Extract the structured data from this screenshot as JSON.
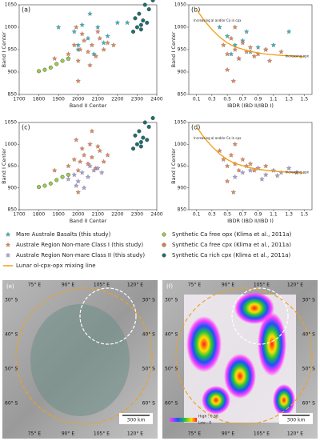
{
  "chart_data": [
    {
      "type": "scatter",
      "title": "(a)",
      "xlabel": "Band II Center",
      "ylabel": "Band I Center",
      "xlim": [
        1700,
        2400
      ],
      "xticks": [
        1700,
        1800,
        1900,
        2000,
        2100,
        2200,
        2300,
        2400
      ],
      "ylim": [
        850,
        1050
      ],
      "yticks": [
        850,
        900,
        950,
        1000,
        1050
      ],
      "series": [
        {
          "color": "#3ab5c0",
          "marker": "star",
          "x": [
            1900,
            1950,
            1980,
            2000,
            2020,
            2050,
            2080,
            2100,
            2130,
            2150,
            2200,
            2250,
            2000,
            2060
          ],
          "y": [
            1000,
            930,
            990,
            960,
            1005,
            975,
            940,
            1000,
            965,
            980,
            1010,
            1010,
            950,
            1030
          ]
        },
        {
          "color": "#e8875a",
          "marker": "star",
          "x": [
            1950,
            1980,
            2000,
            2010,
            2030,
            2050,
            2070,
            2090,
            2110,
            2130,
            2150,
            2180,
            2000,
            2060,
            1990,
            2100,
            1880,
            2020
          ],
          "y": [
            940,
            960,
            925,
            950,
            970,
            945,
            960,
            935,
            975,
            950,
            965,
            960,
            880,
            915,
            1000,
            990,
            930,
            985
          ]
        },
        {
          "color": "#9acd4a",
          "marker": "circle",
          "x": [
            1800,
            1830,
            1860,
            1890,
            1920,
            1950
          ],
          "y": [
            902,
            905,
            910,
            918,
            925,
            930
          ]
        },
        {
          "color": "#1f6f6f",
          "marker": "circle",
          "x": [
            2280,
            2300,
            2320,
            2330,
            2350,
            2290,
            2360,
            2310,
            2340,
            2380,
            2320
          ],
          "y": [
            990,
            1000,
            1005,
            1015,
            1010,
            1020,
            1040,
            1030,
            1050,
            1060,
            995
          ]
        }
      ]
    },
    {
      "type": "scatter",
      "title": "(b)",
      "xlabel": "IBDR (IBD II/IBD I)",
      "ylabel": "Band I Center",
      "xlim": [
        0,
        1.6
      ],
      "xticks": [
        0.1,
        0.3,
        0.5,
        0.7,
        0.9,
        1.1,
        1.3,
        1.5
      ],
      "ylim": [
        850,
        1050
      ],
      "yticks": [
        850,
        900,
        950,
        1000,
        1050
      ],
      "annotations": [
        "Increasing al and/or Ca in cpx",
        "Increasing opx"
      ],
      "series": [
        {
          "color": "#3ab5c0",
          "marker": "star",
          "x": [
            0.4,
            0.5,
            0.6,
            0.7,
            0.8,
            0.9,
            1.0,
            1.1,
            0.55,
            0.75,
            1.3,
            0.65
          ],
          "y": [
            1000,
            980,
            960,
            970,
            945,
            955,
            950,
            960,
            940,
            990,
            990,
            930
          ]
        },
        {
          "color": "#e8875a",
          "marker": "star",
          "x": [
            0.45,
            0.5,
            0.55,
            0.6,
            0.65,
            0.7,
            0.75,
            0.8,
            0.9,
            1.0,
            1.2,
            0.5,
            0.6,
            0.85,
            1.05,
            0.58
          ],
          "y": [
            960,
            940,
            975,
            950,
            930,
            965,
            945,
            955,
            940,
            950,
            945,
            905,
            1000,
            935,
            925,
            880
          ]
        },
        {
          "color": "#f39c12",
          "marker": "line",
          "x": [
            0.1,
            0.2,
            0.3,
            0.4,
            0.5,
            0.6,
            0.8,
            1.0,
            1.2,
            1.5
          ],
          "y": [
            1040,
            1015,
            995,
            978,
            965,
            956,
            946,
            940,
            937,
            934
          ]
        }
      ]
    },
    {
      "type": "scatter",
      "title": "(c)",
      "xlabel": "Band II Center",
      "ylabel": "Band I Center",
      "xlim": [
        1700,
        2400
      ],
      "xticks": [
        1700,
        1800,
        1900,
        2000,
        2100,
        2200,
        2300,
        2400
      ],
      "ylim": [
        850,
        1050
      ],
      "yticks": [
        850,
        900,
        950,
        1000,
        1050
      ],
      "series": [
        {
          "color": "#e8875a",
          "marker": "star",
          "x": [
            1950,
            1980,
            2000,
            2010,
            2030,
            2050,
            2070,
            2090,
            2110,
            2130,
            2150,
            2000,
            2060,
            1990,
            2100,
            1880,
            2020,
            2070
          ],
          "y": [
            950,
            965,
            940,
            960,
            975,
            955,
            970,
            945,
            985,
            960,
            975,
            890,
            1000,
            1010,
            995,
            940,
            990,
            1030
          ]
        },
        {
          "color": "#a9a0d8",
          "marker": "star",
          "x": [
            1950,
            1980,
            2000,
            2020,
            2050,
            2080,
            2100,
            1990,
            2030,
            2060,
            2120
          ],
          "y": [
            920,
            930,
            915,
            935,
            925,
            940,
            945,
            905,
            900,
            950,
            935
          ]
        },
        {
          "color": "#9acd4a",
          "marker": "circle",
          "x": [
            1800,
            1830,
            1860,
            1890,
            1920,
            1950
          ],
          "y": [
            902,
            905,
            910,
            918,
            925,
            930
          ]
        },
        {
          "color": "#1f6f6f",
          "marker": "circle",
          "x": [
            2280,
            2300,
            2320,
            2330,
            2350,
            2290,
            2360,
            2310,
            2340,
            2380,
            2320
          ],
          "y": [
            990,
            1000,
            1005,
            1015,
            1010,
            1020,
            1040,
            1030,
            1050,
            1060,
            995
          ]
        }
      ]
    },
    {
      "type": "scatter",
      "title": "(d)",
      "xlabel": "IBDR (IBD II/IBD I)",
      "ylabel": "Band I Center",
      "xlim": [
        0,
        1.6
      ],
      "xticks": [
        0.1,
        0.3,
        0.5,
        0.7,
        0.9,
        1.1,
        1.3,
        1.5
      ],
      "ylim": [
        850,
        1050
      ],
      "yticks": [
        850,
        900,
        950,
        1000,
        1050
      ],
      "annotations": [
        "Increasing al and/or Ca in cpx",
        "Increasing opx"
      ],
      "series": [
        {
          "color": "#e8875a",
          "marker": "star",
          "x": [
            0.45,
            0.5,
            0.55,
            0.6,
            0.65,
            0.7,
            0.75,
            0.8,
            0.9,
            1.0,
            0.5,
            0.6,
            0.85,
            0.58,
            0.4
          ],
          "y": [
            965,
            950,
            975,
            955,
            940,
            965,
            950,
            955,
            945,
            950,
            915,
            1000,
            940,
            890,
            985
          ]
        },
        {
          "color": "#a9a0d8",
          "marker": "star",
          "x": [
            0.7,
            0.8,
            0.9,
            1.0,
            1.1,
            1.2,
            1.3,
            1.4,
            0.6,
            0.95,
            1.15
          ],
          "y": [
            935,
            940,
            945,
            930,
            940,
            935,
            945,
            935,
            925,
            920,
            928
          ]
        },
        {
          "color": "#f39c12",
          "marker": "line",
          "x": [
            0.1,
            0.2,
            0.3,
            0.4,
            0.5,
            0.6,
            0.8,
            1.0,
            1.2,
            1.5
          ],
          "y": [
            1040,
            1015,
            995,
            978,
            965,
            956,
            946,
            940,
            937,
            934
          ]
        }
      ]
    }
  ],
  "legend": [
    {
      "name": "Mare Australe Basalts (this study)",
      "color": "#3ab5c0",
      "marker": "star"
    },
    {
      "name": "Synthetic Ca free opx (Klima et al., 2011a)",
      "color": "#9acd4a",
      "marker": "circle"
    },
    {
      "name": "Australe Region Non-mare Class I (this study)",
      "color": "#e8875a",
      "marker": "star"
    },
    {
      "name": "Synthetic Ca free cpx (Klima et al., 2011a)",
      "color": "#e07a4a",
      "marker": "circle"
    },
    {
      "name": "Australe Region Non-mare Class II (this study)",
      "color": "#a9a0d8",
      "marker": "star"
    },
    {
      "name": "Synthetic Ca rich cpx (Klima et al., 2011a)",
      "color": "#1f6f6f",
      "marker": "circle"
    },
    {
      "name": "Lunar ol-cpx-opx mixing line",
      "color": "#f39c12",
      "marker": "line"
    }
  ],
  "maps": [
    {
      "label": "(e)",
      "lon_labels": [
        "75° E",
        "90° E",
        "105° E",
        "120° E"
      ],
      "lat_labels": [
        "30° S",
        "40° S",
        "50° S",
        "60° S"
      ],
      "scale": "300 km"
    },
    {
      "label": "(f)",
      "lon_labels": [
        "75° E",
        "90° E",
        "105° E",
        "120° E"
      ],
      "lat_labels": [
        "30° S",
        "40° S",
        "50° S",
        "60° S"
      ],
      "scale": "300 km",
      "colorbar": [
        "High : 0.88",
        "Low : 0"
      ]
    }
  ]
}
